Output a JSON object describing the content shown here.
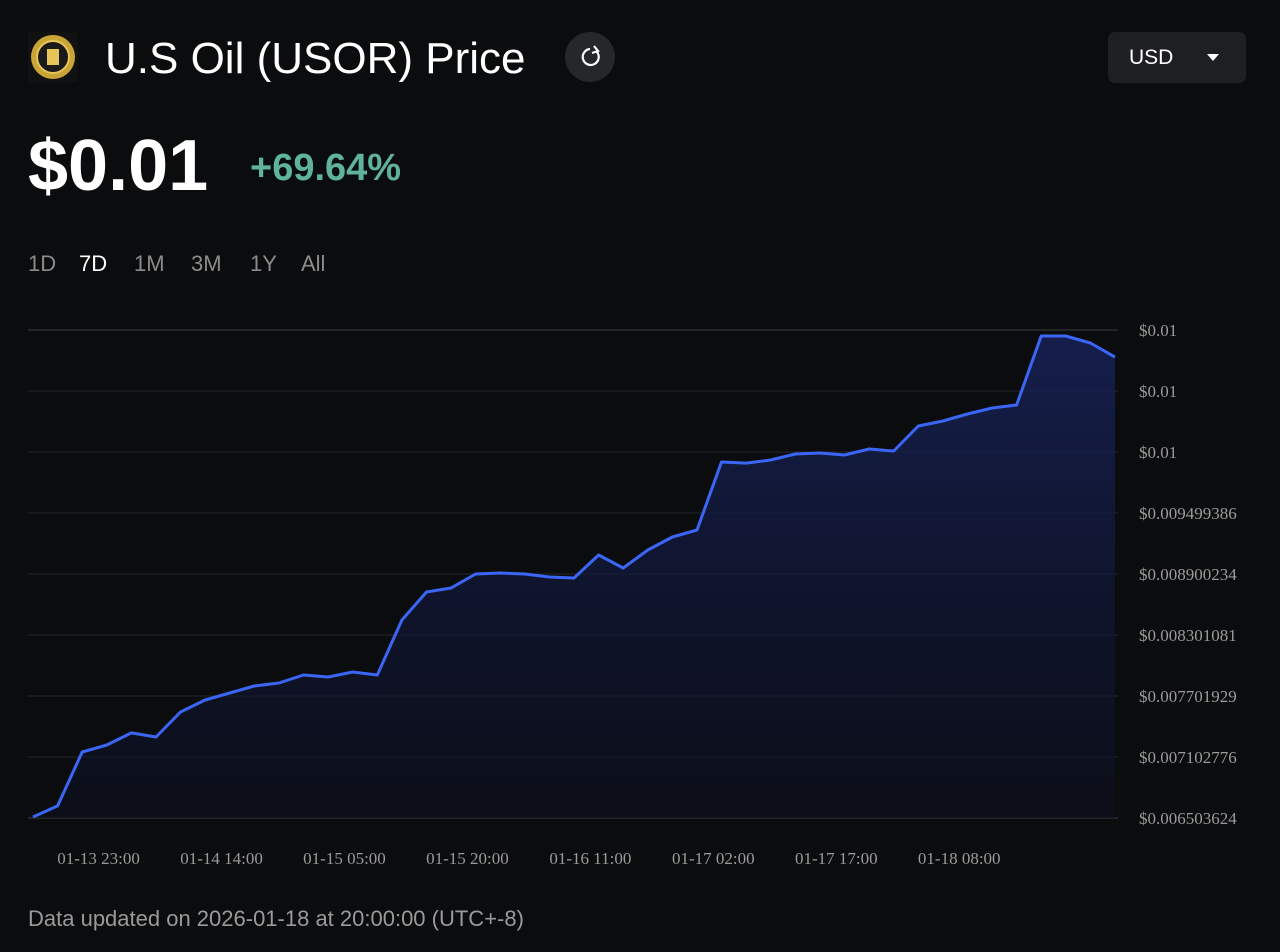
{
  "header": {
    "title": "U.S Oil (USOR) Price",
    "currency": "USD"
  },
  "price": {
    "value": "$0.01",
    "change": "+69.64%"
  },
  "ranges": [
    "1D",
    "7D",
    "1M",
    "3M",
    "1Y",
    "All"
  ],
  "selected_range": "7D",
  "chart_data": {
    "type": "area",
    "x": [
      "01-13 15:00",
      "01-13 18:00",
      "01-13 21:00",
      "01-14 00:00",
      "01-14 03:00",
      "01-14 06:00",
      "01-14 09:00",
      "01-14 12:00",
      "01-14 15:00",
      "01-14 18:00",
      "01-14 21:00",
      "01-15 00:00",
      "01-15 03:00",
      "01-15 06:00",
      "01-15 09:00",
      "01-15 12:00",
      "01-15 15:00",
      "01-15 18:00",
      "01-15 21:00",
      "01-16 00:00",
      "01-16 03:00",
      "01-16 06:00",
      "01-16 09:00",
      "01-16 12:00",
      "01-16 15:00",
      "01-16 18:00",
      "01-16 21:00",
      "01-17 00:00",
      "01-17 03:00",
      "01-17 06:00",
      "01-17 09:00",
      "01-17 12:00",
      "01-17 15:00",
      "01-17 18:00",
      "01-17 21:00",
      "01-18 00:00",
      "01-18 03:00",
      "01-18 06:00",
      "01-18 09:00",
      "01-18 12:00",
      "01-18 15:00",
      "01-18 18:00",
      "01-18 21:00",
      "01-19 00:00",
      "01-19 03:00"
    ],
    "values": [
      0.006513,
      0.006622,
      0.007152,
      0.007221,
      0.007339,
      0.007299,
      0.007545,
      0.007663,
      0.007731,
      0.0078,
      0.00783,
      0.007908,
      0.007889,
      0.007938,
      0.007908,
      0.008448,
      0.008723,
      0.008763,
      0.0089,
      0.00891,
      0.0089,
      0.008871,
      0.008861,
      0.009087,
      0.008959,
      0.009136,
      0.009264,
      0.009332,
      0.01,
      0.00999,
      0.01002,
      0.010079,
      0.010089,
      0.010069,
      0.010128,
      0.010108,
      0.010354,
      0.010403,
      0.010472,
      0.010531,
      0.01056,
      0.011238,
      0.011238,
      0.011169,
      0.011031
    ],
    "color": "#3b66f5",
    "xlim": [
      "01-13 15:00",
      "01-19 03:00"
    ],
    "xticks": [
      "01-13 23:00",
      "01-14 14:00",
      "01-15 05:00",
      "01-15 20:00",
      "01-16 11:00",
      "01-17 02:00",
      "01-17 17:00",
      "01-18 08:00"
    ],
    "ylim": [
      0.006503624,
      0.011296844
    ],
    "yticks": [
      {
        "value": 0.006503624,
        "label": "$0.006503624"
      },
      {
        "value": 0.007102776,
        "label": "$0.007102776"
      },
      {
        "value": 0.007701929,
        "label": "$0.007701929"
      },
      {
        "value": 0.008301081,
        "label": "$0.008301081"
      },
      {
        "value": 0.008900234,
        "label": "$0.008900234"
      },
      {
        "value": 0.009499386,
        "label": "$0.009499386"
      },
      {
        "value": 0.010098539,
        "label": "$0.01"
      },
      {
        "value": 0.010697691,
        "label": "$0.01"
      },
      {
        "value": 0.011296844,
        "label": "$0.01"
      }
    ],
    "grid": true
  },
  "footer": "Data updated on 2026-01-18 at 20:00:00 (UTC+-8)"
}
